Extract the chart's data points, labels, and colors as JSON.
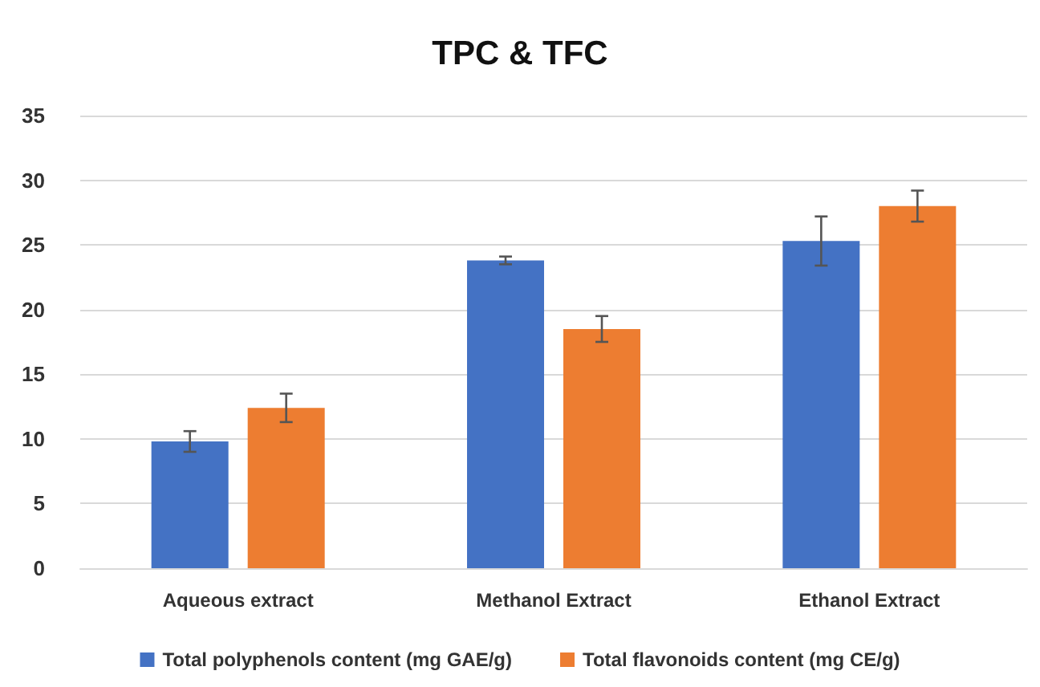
{
  "chart_data": {
    "type": "bar",
    "title": "TPC & TFC",
    "categories": [
      "Aqueous extract",
      "Methanol Extract",
      "Ethanol Extract"
    ],
    "series": [
      {
        "name": "Total polyphenols content (mg GAE/g)",
        "color": "#4472c4",
        "values": [
          9.8,
          23.8,
          25.3
        ],
        "errors": [
          0.8,
          0.3,
          1.9
        ]
      },
      {
        "name": "Total flavonoids content (mg CE/g)",
        "color": "#ed7d31",
        "values": [
          12.4,
          18.5,
          28.0
        ],
        "errors": [
          1.1,
          1.0,
          1.2
        ]
      }
    ],
    "ylim": [
      0,
      35
    ],
    "yticks": [
      0,
      5,
      10,
      15,
      20,
      25,
      30,
      35
    ],
    "grid": "y",
    "legend": "bottom"
  }
}
